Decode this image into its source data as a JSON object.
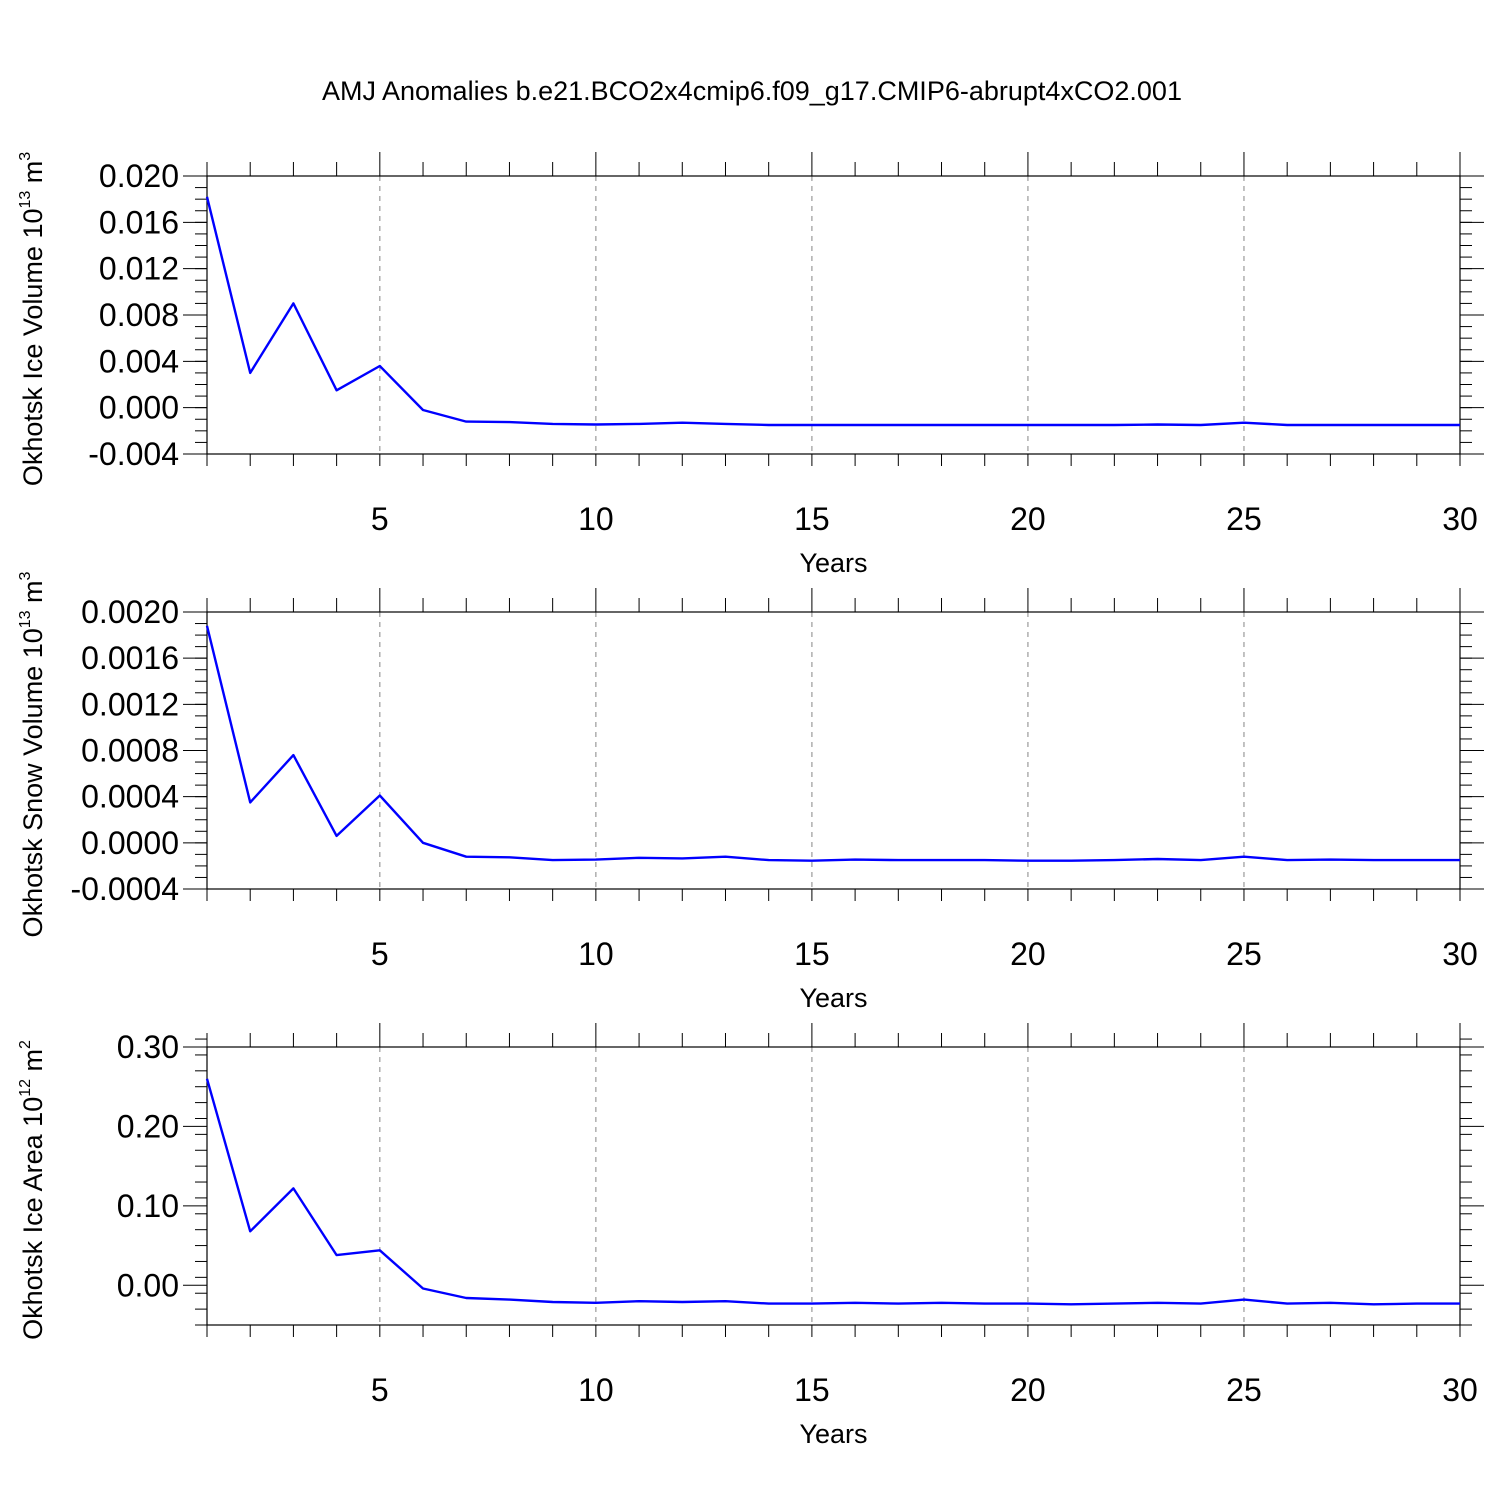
{
  "figure": {
    "title": "AMJ Anomalies b.e21.BCO2x4cmip6.f09_g17.CMIP6-abrupt4xCO2.001"
  },
  "chart_data": [
    {
      "type": "line",
      "title": "",
      "xlabel": "Years",
      "ylabel": {
        "text": "Okhotsk Ice Volume 10",
        "exponent": "13",
        "unit": " m",
        "unit_exponent": "3"
      },
      "xlim": [
        1,
        30
      ],
      "ylim": [
        -0.004,
        0.02
      ],
      "xticks": [
        5,
        10,
        15,
        20,
        25,
        30
      ],
      "yticks": [
        "0.020",
        "0.016",
        "0.012",
        "0.008",
        "0.004",
        "0.000",
        "-0.004"
      ],
      "ytick_values": [
        0.02,
        0.016,
        0.012,
        0.008,
        0.004,
        0.0,
        -0.004
      ],
      "x_minor_step": 1,
      "y_minor_step": 0.001,
      "grid": "dashed vertical at major x ticks",
      "line_color": "#0000ff",
      "series": [
        {
          "name": "Okhotsk Ice Volume",
          "x": [
            1,
            2,
            3,
            4,
            5,
            6,
            7,
            8,
            9,
            10,
            11,
            12,
            13,
            14,
            15,
            16,
            17,
            18,
            19,
            20,
            21,
            22,
            23,
            24,
            25,
            26,
            27,
            28,
            29,
            30
          ],
          "values": [
            0.0182,
            0.003,
            0.009,
            0.0015,
            0.0036,
            -0.0002,
            -0.0012,
            -0.00125,
            -0.0014,
            -0.00145,
            -0.0014,
            -0.0013,
            -0.0014,
            -0.0015,
            -0.0015,
            -0.0015,
            -0.0015,
            -0.0015,
            -0.0015,
            -0.0015,
            -0.0015,
            -0.0015,
            -0.00145,
            -0.0015,
            -0.0013,
            -0.0015,
            -0.0015,
            -0.0015,
            -0.0015,
            -0.0015
          ]
        }
      ]
    },
    {
      "type": "line",
      "title": "",
      "xlabel": "Years",
      "ylabel": {
        "text": "Okhotsk Snow Volume 10",
        "exponent": "13",
        "unit": " m",
        "unit_exponent": "3"
      },
      "xlim": [
        1,
        30
      ],
      "ylim": [
        -0.0004,
        0.002
      ],
      "xticks": [
        5,
        10,
        15,
        20,
        25,
        30
      ],
      "yticks": [
        "0.0020",
        "0.0016",
        "0.0012",
        "0.0008",
        "0.0004",
        "0.0000",
        "-0.0004"
      ],
      "ytick_values": [
        0.002,
        0.0016,
        0.0012,
        0.0008,
        0.0004,
        0.0,
        -0.0004
      ],
      "x_minor_step": 1,
      "y_minor_step": 0.0001,
      "grid": "dashed vertical at major x ticks",
      "line_color": "#0000ff",
      "series": [
        {
          "name": "Okhotsk Snow Volume",
          "x": [
            1,
            2,
            3,
            4,
            5,
            6,
            7,
            8,
            9,
            10,
            11,
            12,
            13,
            14,
            15,
            16,
            17,
            18,
            19,
            20,
            21,
            22,
            23,
            24,
            25,
            26,
            27,
            28,
            29,
            30
          ],
          "values": [
            0.00188,
            0.00035,
            0.00076,
            6e-05,
            0.00041,
            0.0,
            -0.00012,
            -0.000125,
            -0.00015,
            -0.000145,
            -0.00013,
            -0.000135,
            -0.00012,
            -0.00015,
            -0.000155,
            -0.000145,
            -0.00015,
            -0.00015,
            -0.00015,
            -0.000155,
            -0.000155,
            -0.00015,
            -0.00014,
            -0.00015,
            -0.00012,
            -0.00015,
            -0.000145,
            -0.00015,
            -0.00015,
            -0.00015
          ]
        }
      ]
    },
    {
      "type": "line",
      "title": "",
      "xlabel": "Years",
      "ylabel": {
        "text": "Okhotsk Ice Area 10",
        "exponent": "12",
        "unit": " m",
        "unit_exponent": "2"
      },
      "xlim": [
        1,
        30
      ],
      "ylim": [
        -0.05,
        0.3
      ],
      "xticks": [
        5,
        10,
        15,
        20,
        25,
        30
      ],
      "yticks": [
        "0.30",
        "0.20",
        "0.10",
        "0.00"
      ],
      "ytick_values": [
        0.3,
        0.2,
        0.1,
        0.0
      ],
      "x_minor_step": 1,
      "y_minor_step": 0.02,
      "grid": "dashed vertical at major x ticks",
      "line_color": "#0000ff",
      "series": [
        {
          "name": "Okhotsk Ice Area",
          "x": [
            1,
            2,
            3,
            4,
            5,
            6,
            7,
            8,
            9,
            10,
            11,
            12,
            13,
            14,
            15,
            16,
            17,
            18,
            19,
            20,
            21,
            22,
            23,
            24,
            25,
            26,
            27,
            28,
            29,
            30
          ],
          "values": [
            0.26,
            0.068,
            0.122,
            0.038,
            0.044,
            -0.004,
            -0.016,
            -0.018,
            -0.021,
            -0.022,
            -0.02,
            -0.021,
            -0.02,
            -0.023,
            -0.023,
            -0.022,
            -0.023,
            -0.022,
            -0.023,
            -0.023,
            -0.024,
            -0.023,
            -0.022,
            -0.023,
            -0.018,
            -0.023,
            -0.022,
            -0.024,
            -0.023,
            -0.023
          ]
        }
      ]
    }
  ]
}
